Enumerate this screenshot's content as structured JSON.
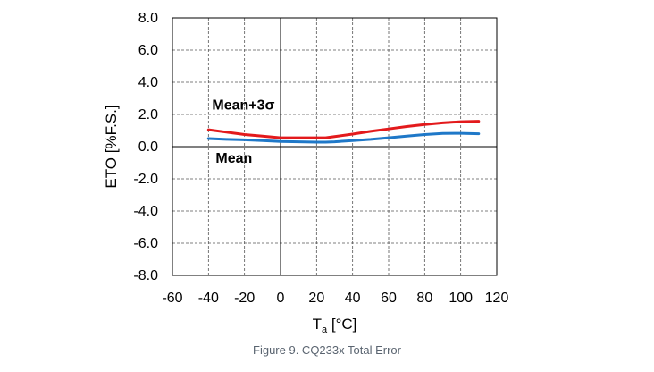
{
  "caption": "Figure 9. CQ233x Total Error",
  "chart_data": {
    "type": "line",
    "xlabel": "T",
    "xlabel_sub": "a",
    "xlabel_unit": "[°C]",
    "ylabel": "ETO [%F.S.]",
    "xlim": [
      -60,
      120
    ],
    "ylim": [
      -8.0,
      8.0
    ],
    "x_ticks": [
      -60,
      -40,
      -20,
      0,
      20,
      40,
      60,
      80,
      100,
      120
    ],
    "x_tick_labels": [
      "-60",
      "-40",
      "-20",
      "0",
      "20",
      "40",
      "60",
      "80",
      "100",
      "120"
    ],
    "y_ticks": [
      8.0,
      6.0,
      4.0,
      2.0,
      0.0,
      -2.0,
      -4.0,
      -6.0,
      -8.0
    ],
    "y_tick_labels": [
      "8.0",
      "6.0",
      "4.0",
      "2.0",
      "0.0",
      "-2.0",
      "-4.0",
      "-6.0",
      "-8.0"
    ],
    "grid": true,
    "series": [
      {
        "name": "Mean+3σ",
        "color": "#e31a1c",
        "x": [
          -40,
          -30,
          -20,
          -10,
          0,
          10,
          20,
          25,
          30,
          40,
          50,
          60,
          70,
          80,
          90,
          100,
          110
        ],
        "y": [
          1.05,
          0.9,
          0.75,
          0.65,
          0.55,
          0.55,
          0.55,
          0.55,
          0.62,
          0.78,
          0.95,
          1.1,
          1.25,
          1.38,
          1.48,
          1.55,
          1.58
        ]
      },
      {
        "name": "Mean",
        "color": "#1f78c8",
        "x": [
          -40,
          -30,
          -20,
          -10,
          0,
          10,
          20,
          25,
          30,
          40,
          50,
          60,
          70,
          80,
          90,
          100,
          110
        ],
        "y": [
          0.5,
          0.45,
          0.42,
          0.38,
          0.32,
          0.3,
          0.28,
          0.28,
          0.3,
          0.38,
          0.45,
          0.55,
          0.65,
          0.75,
          0.82,
          0.83,
          0.8
        ]
      }
    ],
    "annotations": [
      {
        "text": "Mean+3σ",
        "x": -38,
        "y": 2.3
      },
      {
        "text": "Mean",
        "x": -36,
        "y": -1.0
      }
    ]
  }
}
